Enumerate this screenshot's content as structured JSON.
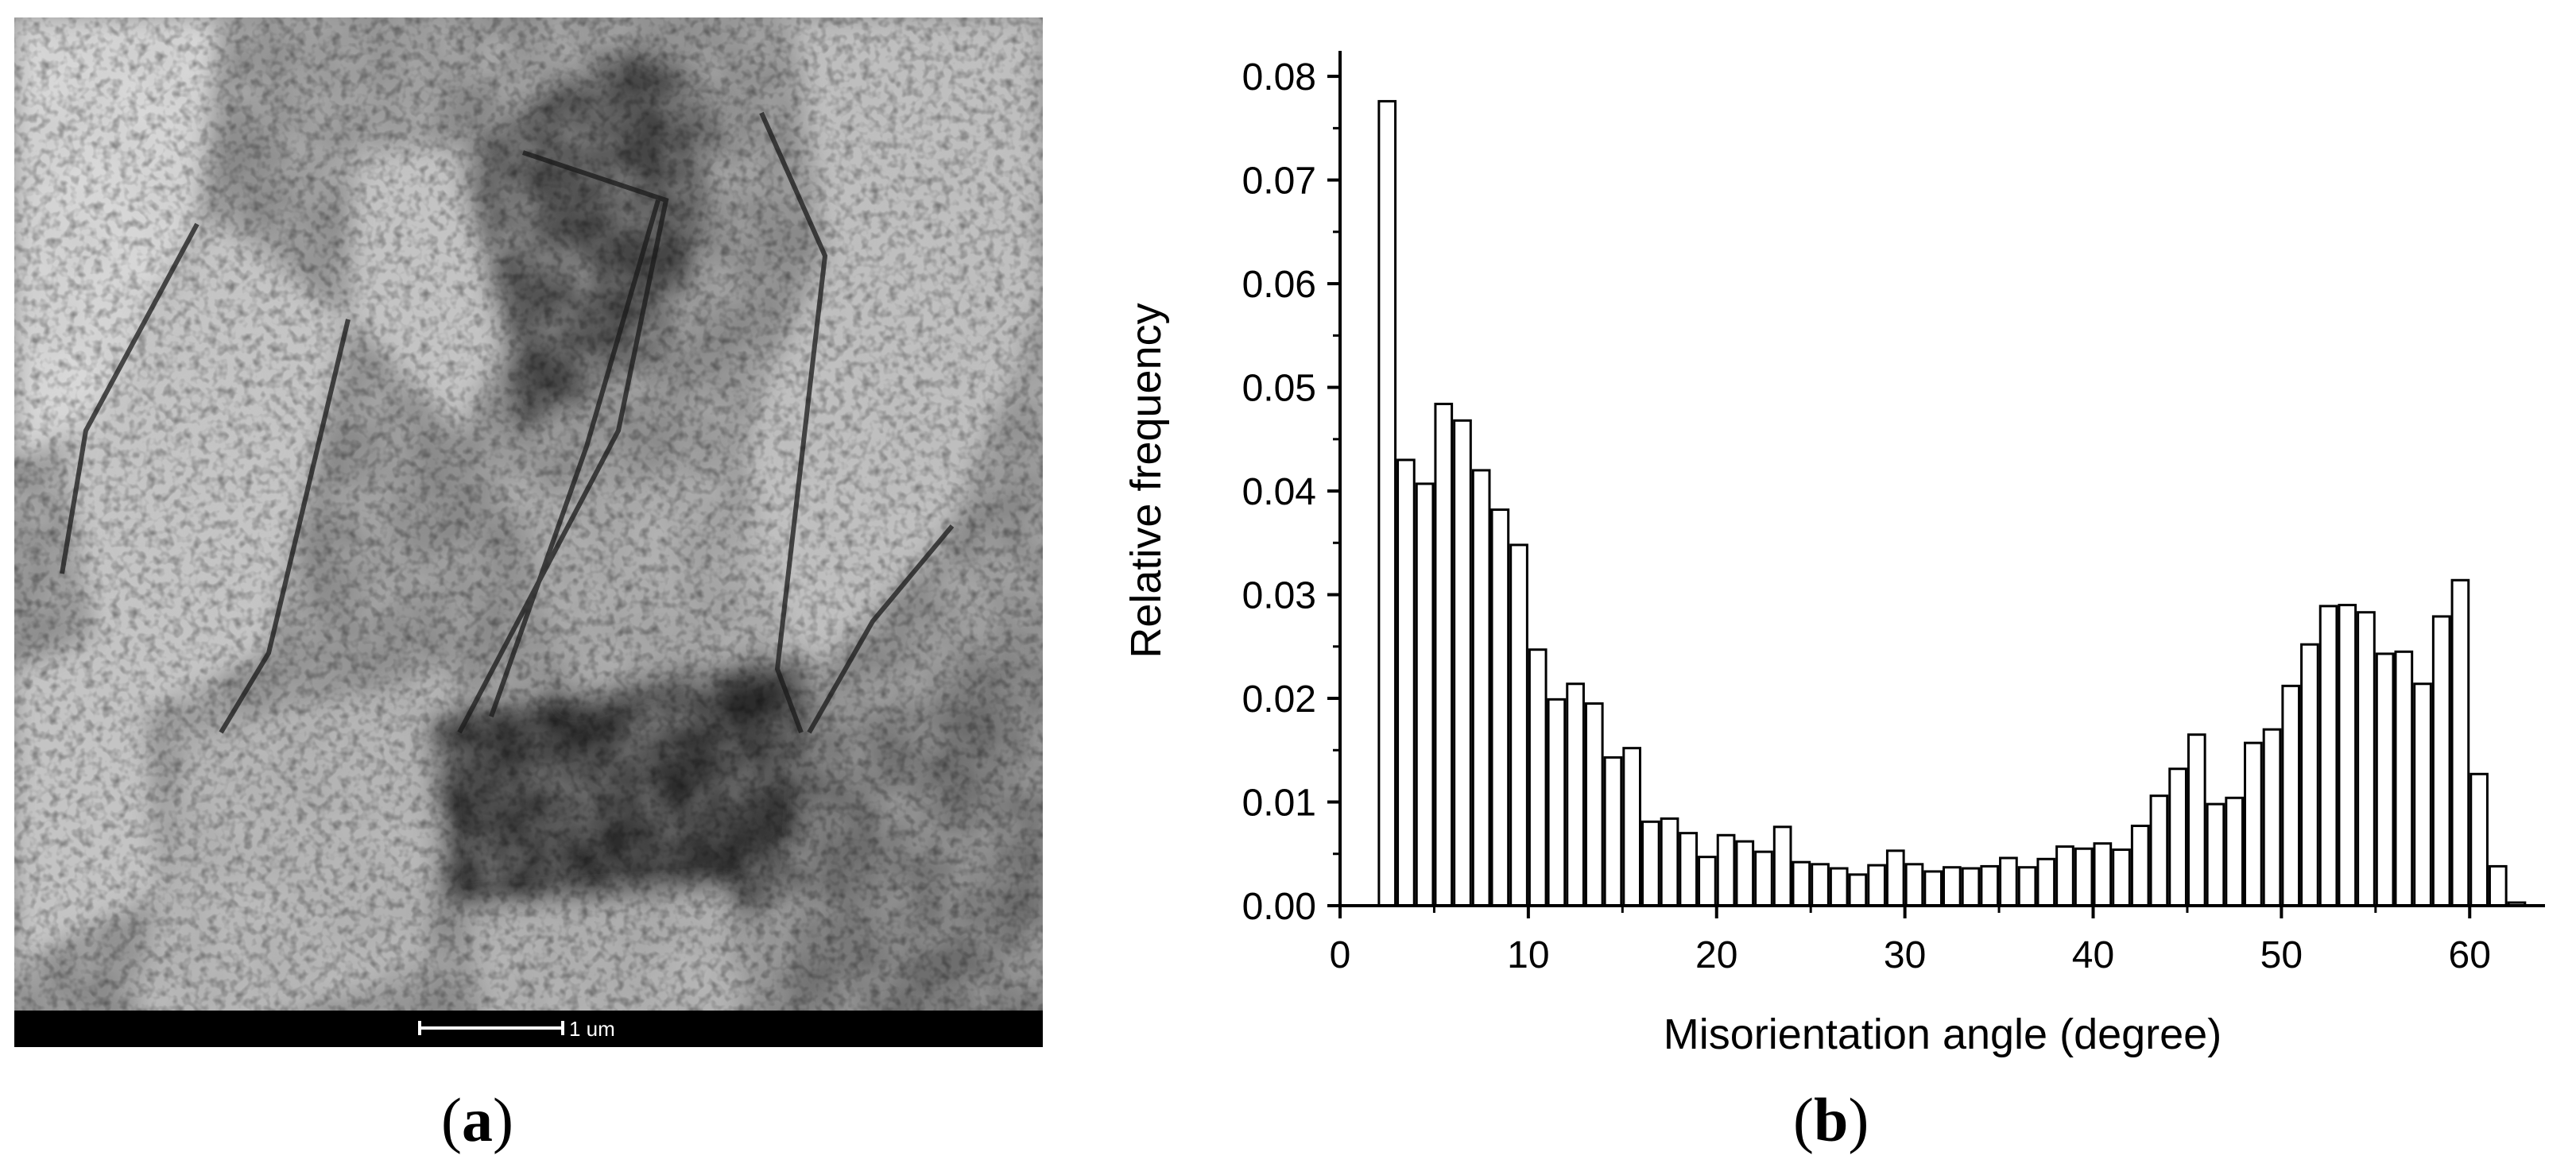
{
  "panels": {
    "a": {
      "label": "a"
    },
    "b": {
      "label": "b"
    }
  },
  "micrograph": {
    "scale_bar_label": "1 um"
  },
  "chart_data": {
    "type": "bar",
    "xlabel": "Misorientation angle (degree)",
    "ylabel": "Relative frequency",
    "xlim": [
      0,
      64
    ],
    "ylim": [
      0,
      0.082
    ],
    "xticks": [
      0,
      10,
      20,
      30,
      40,
      50,
      60
    ],
    "yticks": [
      0.0,
      0.01,
      0.02,
      0.03,
      0.04,
      0.05,
      0.06,
      0.07,
      0.08
    ],
    "ytick_labels": [
      "0.00",
      "0.01",
      "0.02",
      "0.03",
      "0.04",
      "0.05",
      "0.06",
      "0.07",
      "0.08"
    ],
    "bin_width": 1,
    "bar_fill": "#ffffff",
    "bar_stroke": "#000000",
    "x": [
      2.5,
      3.5,
      4.5,
      5.5,
      6.5,
      7.5,
      8.5,
      9.5,
      10.5,
      11.5,
      12.5,
      13.5,
      14.5,
      15.5,
      16.5,
      17.5,
      18.5,
      19.5,
      20.5,
      21.5,
      22.5,
      23.5,
      24.5,
      25.5,
      26.5,
      27.5,
      28.5,
      29.5,
      30.5,
      31.5,
      32.5,
      33.5,
      34.5,
      35.5,
      36.5,
      37.5,
      38.5,
      39.5,
      40.5,
      41.5,
      42.5,
      43.5,
      44.5,
      45.5,
      46.5,
      47.5,
      48.5,
      49.5,
      50.5,
      51.5,
      52.5,
      53.5,
      54.5,
      55.5,
      56.5,
      57.5,
      58.5,
      59.5,
      60.5,
      61.5,
      62.5
    ],
    "values": [
      0.0776,
      0.043,
      0.0407,
      0.0484,
      0.0468,
      0.042,
      0.0382,
      0.0348,
      0.0247,
      0.0199,
      0.0214,
      0.0195,
      0.0143,
      0.0152,
      0.0081,
      0.0084,
      0.007,
      0.0047,
      0.0068,
      0.0062,
      0.0052,
      0.0076,
      0.0042,
      0.004,
      0.0036,
      0.003,
      0.0039,
      0.0053,
      0.004,
      0.0033,
      0.0037,
      0.0036,
      0.0038,
      0.0046,
      0.0037,
      0.0045,
      0.0057,
      0.0055,
      0.006,
      0.0054,
      0.0077,
      0.0106,
      0.0132,
      0.0165,
      0.0098,
      0.0104,
      0.0157,
      0.017,
      0.0212,
      0.0252,
      0.0289,
      0.029,
      0.0283,
      0.0243,
      0.0245,
      0.0214,
      0.0279,
      0.0314,
      0.0127,
      0.0038,
      0.0003
    ]
  }
}
